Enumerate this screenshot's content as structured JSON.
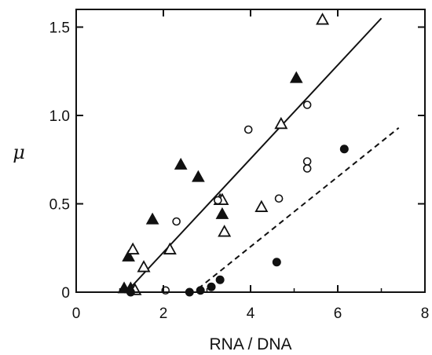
{
  "chart_data": {
    "type": "scatter",
    "title": "",
    "xlabel": "RNA / DNA",
    "ylabel": "μ",
    "xlim": [
      0,
      8
    ],
    "ylim": [
      0,
      1.6
    ],
    "xticks": [
      0,
      2,
      4,
      6,
      8
    ],
    "yticks": [
      0,
      0.5,
      1.0,
      1.5
    ],
    "xtick_labels": [
      "0",
      "2",
      "4",
      "6",
      "8"
    ],
    "ytick_labels": [
      "0",
      "0.5",
      "1.0",
      "1.5"
    ],
    "grid": false,
    "series": [
      {
        "marker": "filled-triangle",
        "points": [
          [
            1.2,
            0.2
          ],
          [
            1.1,
            0.02
          ],
          [
            1.25,
            0.02
          ],
          [
            1.75,
            0.41
          ],
          [
            2.4,
            0.72
          ],
          [
            2.8,
            0.65
          ],
          [
            3.35,
            0.44
          ],
          [
            5.05,
            1.21
          ]
        ]
      },
      {
        "marker": "open-triangle",
        "points": [
          [
            1.3,
            0.24
          ],
          [
            1.35,
            0.01
          ],
          [
            1.55,
            0.14
          ],
          [
            2.15,
            0.24
          ],
          [
            3.3,
            0.52
          ],
          [
            3.35,
            0.52
          ],
          [
            3.4,
            0.34
          ],
          [
            4.25,
            0.48
          ],
          [
            4.7,
            0.95
          ],
          [
            5.65,
            1.54
          ]
        ]
      },
      {
        "marker": "open-circle",
        "points": [
          [
            2.05,
            0.01
          ],
          [
            2.3,
            0.4
          ],
          [
            3.25,
            0.52
          ],
          [
            3.95,
            0.92
          ],
          [
            4.65,
            0.53
          ],
          [
            5.3,
            1.06
          ],
          [
            5.3,
            0.74
          ],
          [
            5.3,
            0.7
          ]
        ]
      },
      {
        "marker": "filled-circle",
        "points": [
          [
            1.25,
            0.0
          ],
          [
            2.6,
            0.0
          ],
          [
            2.85,
            0.01
          ],
          [
            3.1,
            0.03
          ],
          [
            3.3,
            0.07
          ],
          [
            4.6,
            0.17
          ],
          [
            6.15,
            0.81
          ]
        ]
      }
    ],
    "fit_lines": [
      {
        "style": "solid",
        "x": [
          1.15,
          7.0
        ],
        "y": [
          0.0,
          1.55
        ]
      },
      {
        "style": "dashed",
        "x": [
          2.8,
          7.4
        ],
        "y": [
          0.02,
          0.93
        ]
      }
    ]
  }
}
